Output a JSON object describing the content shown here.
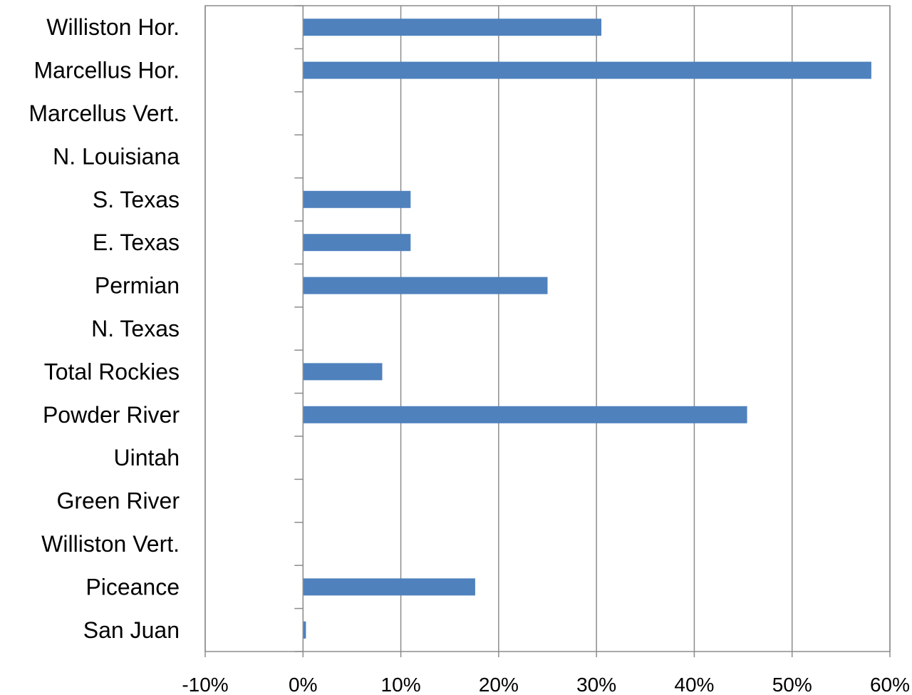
{
  "chart_data": {
    "type": "bar",
    "orientation": "horizontal",
    "categories": [
      "Williston Hor.",
      "Marcellus Hor.",
      "Marcellus Vert.",
      "N. Louisiana",
      "S. Texas",
      "E. Texas",
      "Permian",
      "N. Texas",
      "Total Rockies",
      "Powder River",
      "Uintah",
      "Green River",
      "Williston Vert.",
      "Piceance",
      "San Juan"
    ],
    "values": [
      30.5,
      58.1,
      0,
      0,
      11.0,
      11.0,
      25.0,
      0,
      8.1,
      45.4,
      0,
      0,
      0,
      17.6,
      0.3
    ],
    "title": "",
    "xlabel": "",
    "ylabel": "",
    "xlim": [
      -10,
      60
    ],
    "x_ticks": [
      -10,
      0,
      10,
      20,
      30,
      40,
      50,
      60
    ],
    "x_tick_labels": [
      "-10%",
      "0%",
      "10%",
      "20%",
      "30%",
      "40%",
      "50%",
      "60%"
    ],
    "grid": "vertical",
    "legend": "none",
    "bar_color": "#4F81BD",
    "grid_color": "#8C8C8C",
    "axis_color": "#8C8C8C"
  }
}
